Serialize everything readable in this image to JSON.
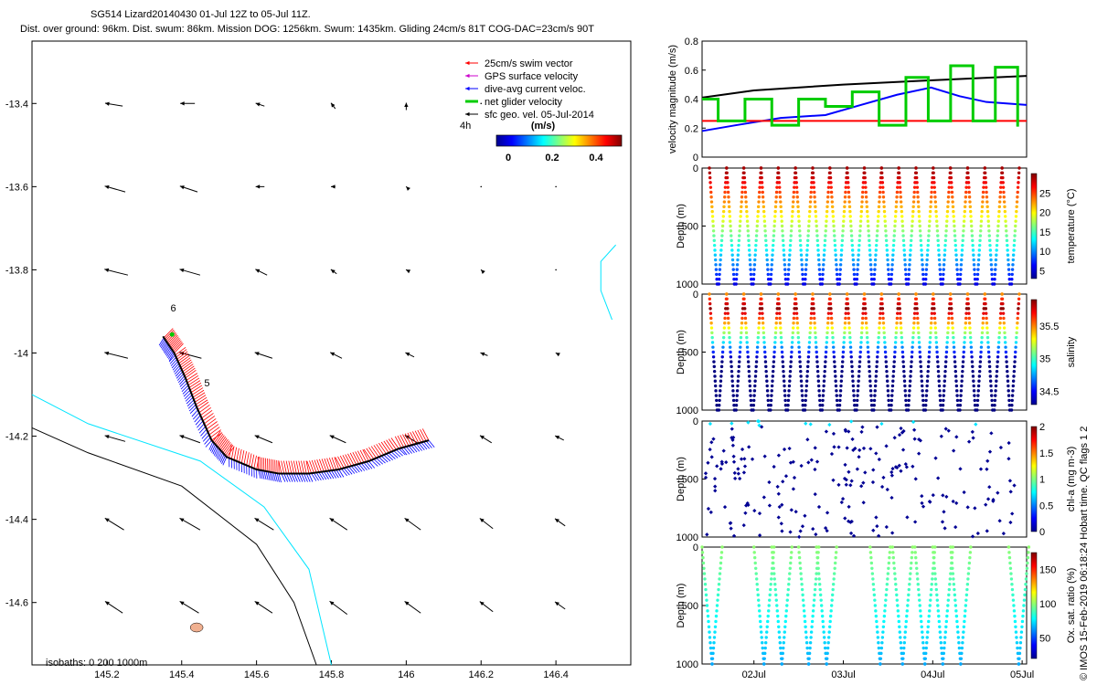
{
  "title": {
    "line1": "SG514 Lizard20140430 01-Jul 12Z to 05-Jul 11Z.",
    "line2": "Dist. over ground: 96km. Dist. swum: 86km. Mission DOG: 1256km. Swum: 1435km. Gliding 24cm/s 81T COG-DAC=23cm/s 90T"
  },
  "credit": "© IMOS 15-Feb-2019 06:18:24 Hobart time. QC flags 1 2",
  "chart_data": [
    {
      "type": "map-quiver",
      "name": "glider track map",
      "xlim": [
        145.0,
        146.6
      ],
      "ylim": [
        -14.75,
        -13.25
      ],
      "xticks": [
        145.2,
        145.4,
        145.6,
        145.8,
        146,
        146.2,
        146.4
      ],
      "yticks": [
        -13.4,
        -13.6,
        -13.8,
        -14,
        -14.2,
        -14.4,
        -14.6
      ],
      "legend": [
        {
          "label": "25cm/s swim vector",
          "color": "#ff0000"
        },
        {
          "label": "GPS surface velocity",
          "color": "#cc00cc"
        },
        {
          "label": "dive-avg current veloc.",
          "color": "#0000ff"
        },
        {
          "label": "net glider velocity",
          "color": "#00cc00"
        },
        {
          "label": "sfc geo. vel. 05-Jul-2014",
          "color": "#000000"
        }
      ],
      "colorbar": {
        "label": "(m/s)",
        "ticks": [
          "0",
          "0.2",
          "0.4"
        ],
        "range": [
          0,
          0.5
        ]
      },
      "track_label": "4h",
      "waypoint_labels": [
        "6",
        "5"
      ],
      "isobaths_label": "isobaths: 0   200  1000m",
      "track": {
        "lon": [
          146.06,
          145.98,
          145.9,
          145.82,
          145.74,
          145.66,
          145.6,
          145.52,
          145.48,
          145.44,
          145.41,
          145.38,
          145.35
        ],
        "lat": [
          -14.21,
          -14.23,
          -14.26,
          -14.28,
          -14.29,
          -14.29,
          -14.28,
          -14.25,
          -14.21,
          -14.13,
          -14.06,
          -14.0,
          -13.96
        ]
      },
      "surface_velocity": {
        "lons": [
          145.2,
          145.4,
          145.6,
          145.8,
          146.0,
          146.2,
          146.4
        ],
        "lats": [
          -13.4,
          -13.6,
          -13.8,
          -14.0,
          -14.2,
          -14.4,
          -14.6
        ],
        "u": [
          [
            -0.12,
            -0.1,
            -0.06,
            -0.03,
            0.0,
            0.0,
            0.0
          ],
          [
            -0.14,
            -0.12,
            -0.06,
            -0.03,
            -0.01,
            0.0,
            0.0
          ],
          [
            -0.16,
            -0.14,
            -0.08,
            -0.04,
            -0.02,
            -0.01,
            0.0
          ],
          [
            -0.16,
            -0.15,
            -0.12,
            -0.08,
            -0.06,
            -0.05,
            -0.02
          ],
          [
            -0.14,
            -0.14,
            -0.12,
            -0.11,
            -0.1,
            -0.08,
            -0.06
          ],
          [
            -0.13,
            -0.14,
            -0.13,
            -0.12,
            -0.11,
            -0.09,
            -0.07
          ],
          [
            -0.12,
            -0.13,
            -0.12,
            -0.12,
            -0.11,
            -0.09,
            -0.07
          ]
        ],
        "v": [
          [
            0.02,
            0.0,
            0.02,
            0.04,
            0.05,
            0.0,
            0.0
          ],
          [
            0.04,
            0.04,
            0.0,
            0.0,
            0.01,
            0.0,
            0.0
          ],
          [
            0.04,
            0.04,
            0.04,
            0.03,
            0.01,
            0.01,
            0.0
          ],
          [
            0.04,
            0.04,
            0.04,
            0.04,
            0.03,
            0.02,
            0.01
          ],
          [
            0.04,
            0.05,
            0.05,
            0.05,
            0.06,
            0.05,
            0.03
          ],
          [
            0.08,
            0.08,
            0.08,
            0.08,
            0.08,
            0.07,
            0.05
          ],
          [
            0.08,
            0.08,
            0.08,
            0.09,
            0.08,
            0.07,
            0.05
          ]
        ]
      }
    },
    {
      "type": "line",
      "name": "velocity magnitude",
      "ylabel": "velocity magnitude (m/s)",
      "ylim": [
        0,
        0.8
      ],
      "yticks": [
        "0",
        "0.2",
        "0.4",
        "0.6",
        "0.8"
      ],
      "xlim": [
        1.42,
        5.05
      ],
      "series": [
        {
          "name": "sfc geo. vel.",
          "color": "#000000",
          "x": [
            1.42,
            2.0,
            3.0,
            4.0,
            5.05
          ],
          "y": [
            0.41,
            0.46,
            0.5,
            0.53,
            0.56
          ]
        },
        {
          "name": "dive-avg current",
          "color": "#0000ff",
          "x": [
            1.42,
            1.8,
            2.3,
            2.8,
            3.2,
            3.6,
            3.98,
            4.3,
            4.6,
            5.05
          ],
          "y": [
            0.18,
            0.22,
            0.27,
            0.29,
            0.36,
            0.43,
            0.48,
            0.42,
            0.38,
            0.36
          ]
        },
        {
          "name": "swim",
          "color": "#ff0000",
          "x": [
            1.42,
            5.05
          ],
          "y": [
            0.25,
            0.25
          ]
        },
        {
          "name": "net glider velocity",
          "color": "#00cc00",
          "x": [
            1.42,
            1.6,
            1.9,
            2.2,
            2.5,
            2.8,
            3.1,
            3.4,
            3.7,
            3.95,
            4.2,
            4.45,
            4.7,
            4.95
          ],
          "y": [
            0.4,
            0.25,
            0.4,
            0.22,
            0.4,
            0.35,
            0.45,
            0.22,
            0.55,
            0.25,
            0.63,
            0.25,
            0.62,
            0.21
          ]
        }
      ]
    },
    {
      "type": "scatter",
      "name": "temperature section",
      "ylabel": "Depth (m)",
      "clabel": "temperature (°C)",
      "clim": [
        3,
        30
      ],
      "cticks": [
        "25",
        "20",
        "15",
        "10",
        "5"
      ],
      "yticks": [
        "0",
        "500",
        "1000"
      ],
      "ylim": [
        0,
        1000
      ],
      "dives": 18
    },
    {
      "type": "scatter",
      "name": "salinity section",
      "ylabel": "Depth (m)",
      "clabel": "salinity",
      "clim": [
        34.3,
        35.9
      ],
      "cticks": [
        "35.5",
        "35",
        "34.5"
      ],
      "yticks": [
        "0",
        "500",
        "1000"
      ],
      "ylim": [
        0,
        1000
      ],
      "dives": 18
    },
    {
      "type": "scatter",
      "name": "chlorophyll section",
      "ylabel": "Depth (m)",
      "clabel": "chl-a (mg m-3)",
      "clim": [
        0,
        2
      ],
      "cticks": [
        "2",
        "1.5",
        "1",
        "0.5",
        "0"
      ],
      "yticks": [
        "0",
        "500",
        "1000"
      ],
      "ylim": [
        0,
        1000
      ]
    },
    {
      "type": "scatter",
      "name": "oxygen section",
      "ylabel": "Depth (m)",
      "clabel": "Ox. sat. ratio (%)",
      "clim": [
        20,
        175
      ],
      "cticks": [
        "150",
        "100",
        "50"
      ],
      "yticks": [
        "0",
        "500",
        "1000"
      ],
      "ylim": [
        0,
        1000
      ],
      "xticks": [
        "02Jul",
        "03Jul",
        "04Jul",
        "05Jul"
      ],
      "dive_positions": [
        1.42,
        2.0,
        2.2,
        2.5,
        2.7,
        3.3,
        3.55,
        3.8,
        4.0,
        4.2,
        4.85
      ]
    }
  ]
}
